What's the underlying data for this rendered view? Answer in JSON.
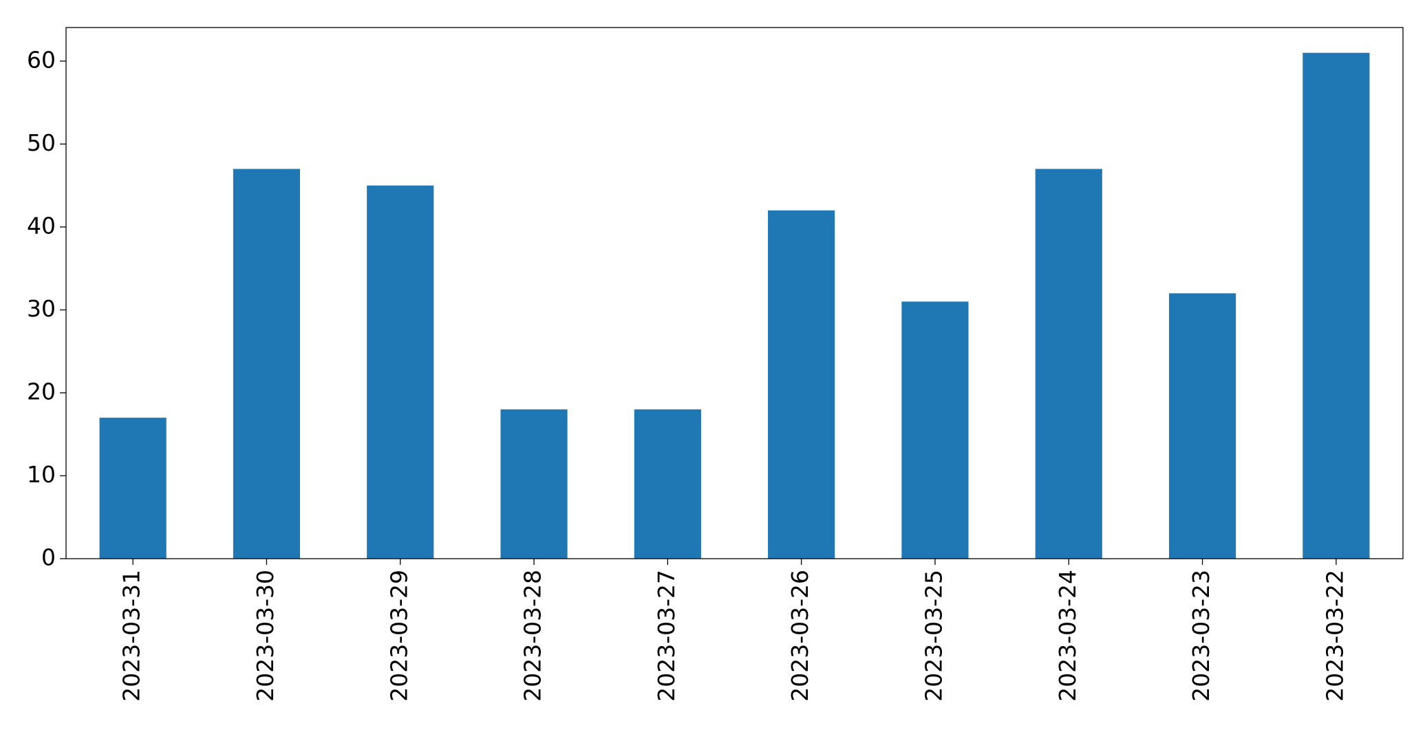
{
  "chart_data": {
    "type": "bar",
    "categories": [
      "2023-03-31",
      "2023-03-30",
      "2023-03-29",
      "2023-03-28",
      "2023-03-27",
      "2023-03-26",
      "2023-03-25",
      "2023-03-24",
      "2023-03-23",
      "2023-03-22"
    ],
    "values": [
      17,
      47,
      45,
      18,
      18,
      42,
      31,
      47,
      32,
      61
    ],
    "color": "#1f77b4",
    "ylim": [
      0,
      64.05
    ],
    "yticks": [
      0,
      10,
      20,
      30,
      40,
      50,
      60
    ],
    "grid": false
  }
}
